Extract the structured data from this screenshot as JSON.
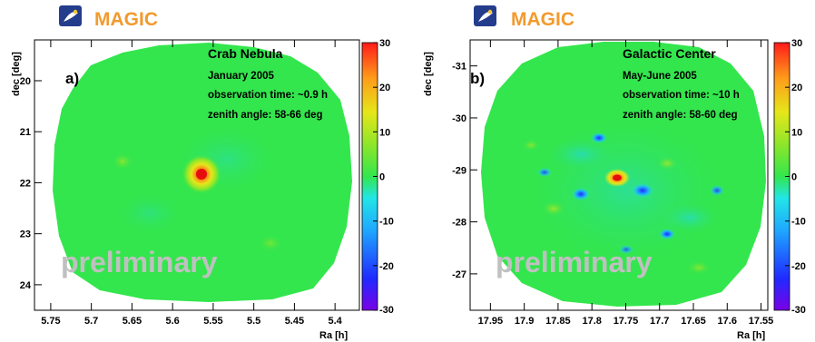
{
  "panels": [
    {
      "logo_text": "MAGIC",
      "panel_label": "a)",
      "title": "Crab Nebula",
      "info_lines": [
        "January 2005",
        "observation time: ~0.9 h",
        "zenith angle: 58-66 deg"
      ],
      "watermark": "preliminary",
      "xlabel": "Ra [h]",
      "ylabel": "dec [deg]",
      "x_ticks": [
        "5.75",
        "5.7",
        "5.65",
        "5.6",
        "5.55",
        "5.5",
        "5.45",
        "5.4"
      ],
      "y_ticks": [
        "24",
        "23",
        "22",
        "21",
        "20"
      ],
      "colorbar_ticks": [
        "30",
        "20",
        "10",
        "0",
        "-10",
        "-20",
        "-30"
      ]
    },
    {
      "logo_text": "MAGIC",
      "panel_label": "b)",
      "title": "Galactic Center",
      "info_lines": [
        "May-June 2005",
        "observation time: ~10 h",
        "zenith angle: 58-60 deg"
      ],
      "watermark": "preliminary",
      "xlabel": "Ra [h]",
      "ylabel": "dec [deg]",
      "x_ticks": [
        "17.95",
        "17.9",
        "17.85",
        "17.8",
        "17.75",
        "17.7",
        "17.65",
        "17.6",
        "17.55"
      ],
      "y_ticks": [
        "-27",
        "-28",
        "-29",
        "-30",
        "-31"
      ],
      "colorbar_ticks": [
        "30",
        "20",
        "10",
        "0",
        "-10",
        "-20",
        "-30"
      ]
    }
  ],
  "colors": {
    "logo_text": "#f29a2e",
    "background_field": "#33e64d",
    "watermark": "#c0c0c0"
  },
  "chart_data": [
    {
      "type": "heatmap",
      "title": "Crab Nebula",
      "xlabel": "Ra [h]",
      "ylabel": "dec [deg]",
      "xlim": [
        5.77,
        5.37
      ],
      "ylim": [
        19.5,
        24.8
      ],
      "zlim": [
        -30,
        30
      ],
      "colormap": "rainbow (violet -30 to red 30)",
      "x_ticks": [
        5.75,
        5.7,
        5.65,
        5.6,
        5.55,
        5.5,
        5.45,
        5.4
      ],
      "y_ticks": [
        20,
        21,
        22,
        23,
        24
      ],
      "colorbar_ticks": [
        -30,
        -20,
        -10,
        0,
        10,
        20,
        30
      ],
      "peaks": [
        {
          "ra": 5.575,
          "dec": 22.02,
          "value": 28
        }
      ]
    },
    {
      "type": "heatmap",
      "title": "Galactic Center",
      "xlabel": "Ra [h]",
      "ylabel": "dec [deg]",
      "xlim": [
        17.98,
        17.54
      ],
      "ylim": [
        -31.7,
        -26.5
      ],
      "zlim": [
        -30,
        30
      ],
      "colormap": "rainbow (violet -30 to red 30)",
      "x_ticks": [
        17.95,
        17.9,
        17.85,
        17.8,
        17.75,
        17.7,
        17.65,
        17.6,
        17.55
      ],
      "y_ticks": [
        -31,
        -30,
        -29,
        -28,
        -27
      ],
      "colorbar_ticks": [
        -30,
        -20,
        -10,
        0,
        10,
        20,
        30
      ],
      "peaks": [
        {
          "ra": 17.755,
          "dec": -28.97,
          "value": 30
        }
      ]
    }
  ]
}
